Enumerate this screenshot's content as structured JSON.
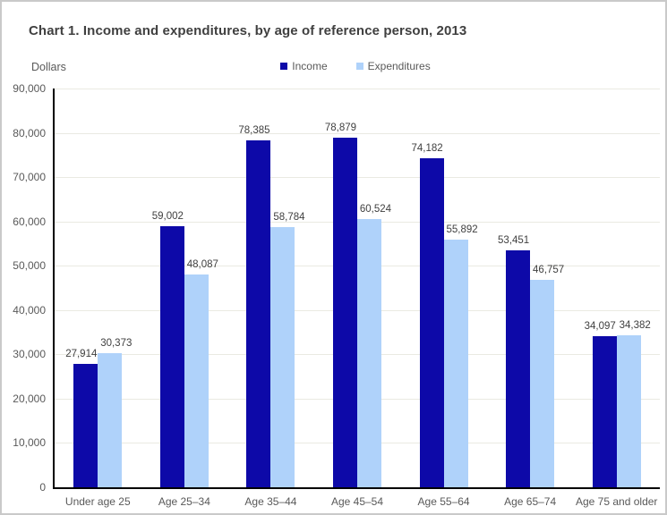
{
  "header": {
    "title": "Chart 1. Income and expenditures, by age of reference person, 2013"
  },
  "chart_data": {
    "type": "bar",
    "title": "Chart 1. Income and expenditures, by age of reference person, 2013",
    "y_axis_title": "Dollars",
    "categories": [
      "Under age 25",
      "Age 25–34",
      "Age 35–44",
      "Age 45–54",
      "Age 55–64",
      "Age 65–74",
      "Age 75 and older"
    ],
    "series": [
      {
        "name": "Income",
        "color": "#0D09A8",
        "values": [
          27914,
          59002,
          78385,
          78879,
          74182,
          53451,
          34097
        ]
      },
      {
        "name": "Expenditures",
        "color": "#AFD2FA",
        "values": [
          30373,
          48087,
          58784,
          60524,
          55892,
          46757,
          34382
        ]
      }
    ],
    "data_labels": [
      "27,914",
      "30,373",
      "59,002",
      "48,087",
      "78,385",
      "58,784",
      "78,879",
      "60,524",
      "74,182",
      "55,892",
      "53,451",
      "46,757",
      "34,097",
      "34,382"
    ],
    "ylim": [
      0,
      90000
    ],
    "ytick_interval": 10000,
    "ytick_labels": [
      "0",
      "10,000",
      "20,000",
      "30,000",
      "40,000",
      "50,000",
      "60,000",
      "70,000",
      "80,000",
      "90,000"
    ],
    "grid": true,
    "legend_position": "top-center",
    "colors": {
      "income_bar": "#0D09A8",
      "expenditures_bar": "#AFD2FA",
      "gridline": "#EAEAE2",
      "axis_line": "#000000",
      "title_text": "#404040",
      "tick_text": "#595959",
      "data_label_text": "#404040",
      "frame_border": "#C9C9C9"
    }
  }
}
